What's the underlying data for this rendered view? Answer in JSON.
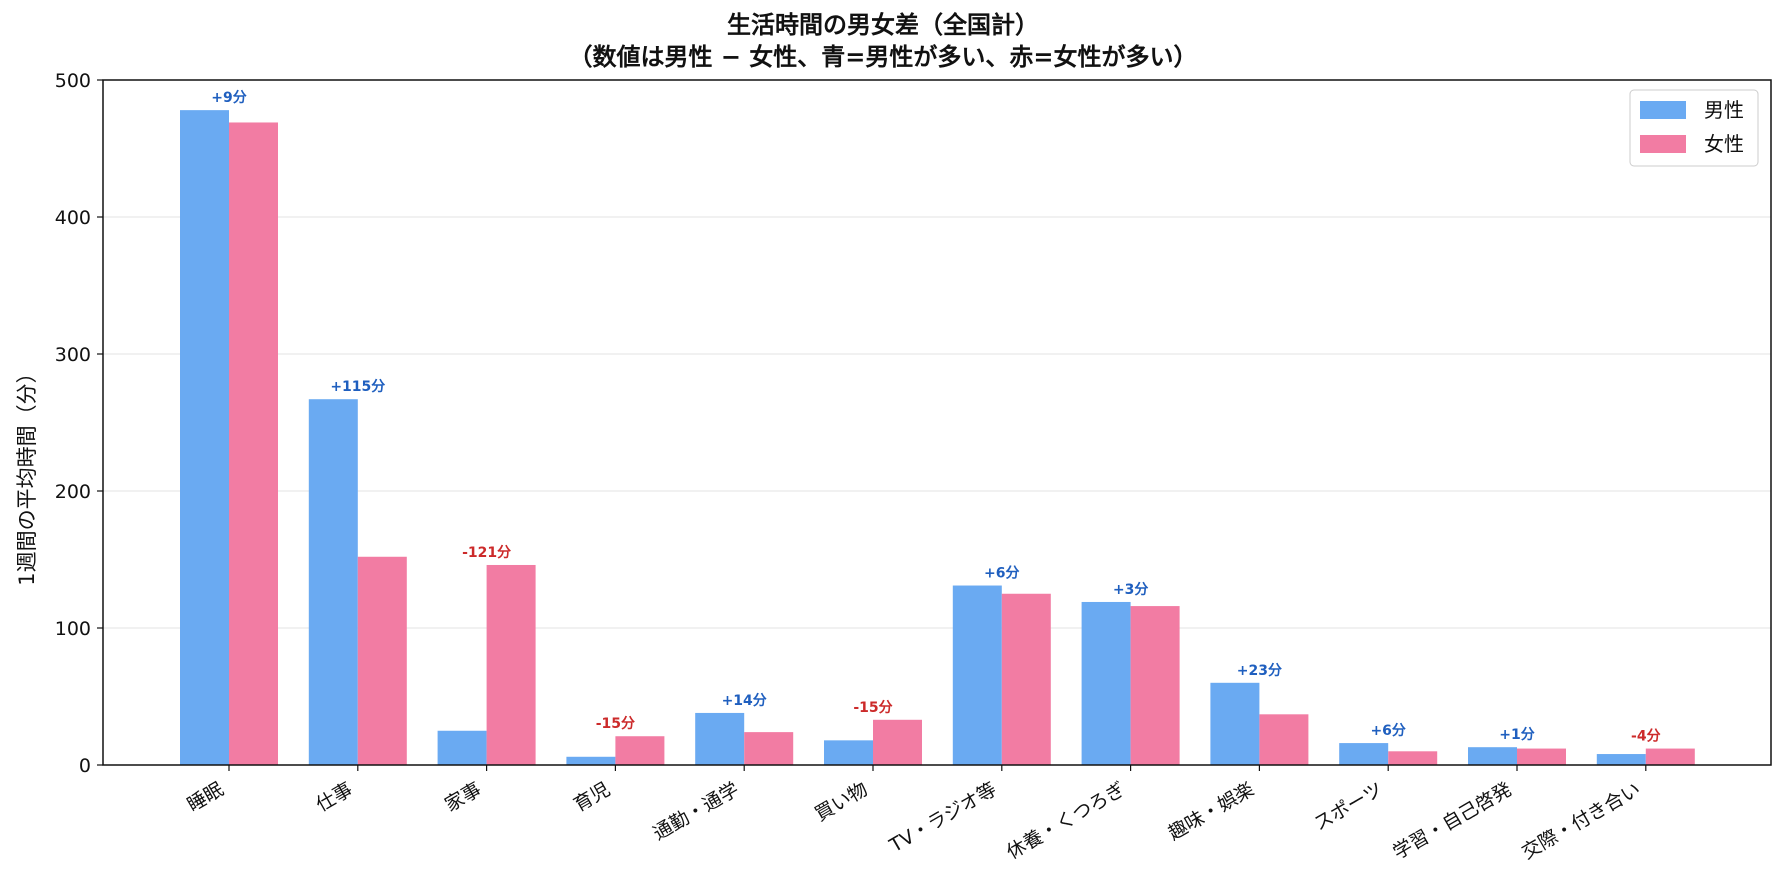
{
  "chart_data": {
    "type": "bar",
    "title_line1": "生活時間の男女差（全国計）",
    "title_line2": "（数値は男性 − 女性、青=男性が多い、赤=女性が多い）",
    "xlabel": "",
    "ylabel": "1週間の平均時間（分）",
    "ylim": [
      0,
      500
    ],
    "yticks": [
      "0",
      "100",
      "200",
      "300",
      "400",
      "500"
    ],
    "grid": "horizontal",
    "legend_position": "top-right",
    "categories": [
      "睡眠",
      "仕事",
      "家事",
      "育児",
      "通勤・通学",
      "買い物",
      "TV・ラジオ等",
      "休養・くつろぎ",
      "趣味・娯楽",
      "スポーツ",
      "学習・自己啓発",
      "交際・付き合い"
    ],
    "series": [
      {
        "name": "男性",
        "color": "#6aaaf2",
        "values": [
          478,
          267,
          25,
          6,
          38,
          18,
          131,
          119,
          60,
          16,
          13,
          8
        ]
      },
      {
        "name": "女性",
        "color": "#f27ca3",
        "values": [
          469,
          152,
          146,
          21,
          24,
          33,
          125,
          116,
          37,
          10,
          12,
          12
        ]
      }
    ],
    "diff_labels": [
      "+9分",
      "+115分",
      "-121分",
      "-15分",
      "+14分",
      "-15分",
      "+6分",
      "+3分",
      "+23分",
      "+6分",
      "+1分",
      "-4分"
    ],
    "diff_colors": {
      "positive": "#1f5fbf",
      "negative": "#cc2a2a"
    }
  }
}
